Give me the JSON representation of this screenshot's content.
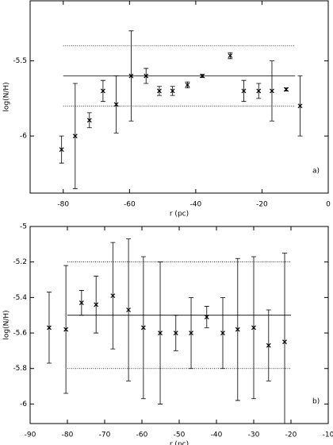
{
  "chart_data": [
    {
      "type": "scatter",
      "xlabel": "r (pc)",
      "ylabel": "log(N/H)",
      "panel_label": "a)",
      "x": [
        -80.5,
        -76.4,
        -72.1,
        -68,
        -64,
        -59.5,
        -55,
        -51,
        -47,
        -42.5,
        -38,
        -29.6,
        -25.5,
        -21,
        -17,
        -12.7,
        -8.5
      ],
      "values": [
        -6.09,
        -6.0,
        -5.895,
        -5.7,
        -5.79,
        -5.6,
        -5.6,
        -5.7,
        -5.7,
        -5.66,
        -5.6,
        -5.465,
        -5.7,
        -5.7,
        -5.7,
        -5.69,
        -5.8
      ],
      "errors": [
        0.09,
        0.35,
        0.05,
        0.07,
        0.19,
        0.3,
        0.05,
        0.03,
        0.03,
        0.02,
        0.01,
        0.02,
        0.07,
        0.05,
        0.2,
        0.01,
        0.2
      ],
      "xlim": [
        -90,
        0
      ],
      "ylim": [
        -6.38,
        -5.1
      ],
      "xticks": [
        -80,
        -60,
        -40,
        -20,
        0
      ],
      "yticks": [
        -6,
        -5.5
      ],
      "hlines": [
        {
          "value": -5.4,
          "style": "dotted"
        },
        {
          "value": -5.6,
          "style": "solid"
        },
        {
          "value": -5.8,
          "style": "dotted"
        }
      ],
      "hline_x": [
        -80,
        -10
      ],
      "color": "#000000"
    },
    {
      "type": "scatter",
      "xlabel": "r (pc)",
      "ylabel": "log(N/H)",
      "panel_label": "b)",
      "x": [
        -84.9,
        -80.4,
        -76.2,
        -72.3,
        -67.8,
        -63.6,
        -59.6,
        -55.1,
        -50.9,
        -46.8,
        -42.6,
        -38.3,
        -34.3,
        -30,
        -26,
        -21.7
      ],
      "values": [
        -5.57,
        -5.58,
        -5.43,
        -5.44,
        -5.39,
        -5.47,
        -5.57,
        -5.6,
        -5.6,
        -5.6,
        -5.51,
        -5.6,
        -5.58,
        -5.57,
        -5.67,
        -5.65
      ],
      "errors": [
        0.2,
        0.36,
        0.07,
        0.16,
        0.3,
        0.4,
        0.4,
        0.4,
        0.1,
        0.2,
        0.06,
        0.2,
        0.4,
        0.4,
        0.2,
        0.5
      ],
      "xlim": [
        -90,
        -10
      ],
      "ylim": [
        -6.11,
        -5
      ],
      "xticks": [
        -90,
        -80,
        -70,
        -60,
        -50,
        -40,
        -30,
        -20,
        -10
      ],
      "yticks": [
        -6,
        -5.8,
        -5.6,
        -5.4,
        -5.2,
        -5
      ],
      "hlines": [
        {
          "value": -5.2,
          "style": "dotted"
        },
        {
          "value": -5.5,
          "style": "solid"
        },
        {
          "value": -5.8,
          "style": "dotted"
        }
      ],
      "hline_x": [
        -80,
        -20
      ],
      "color": "#000000"
    }
  ]
}
